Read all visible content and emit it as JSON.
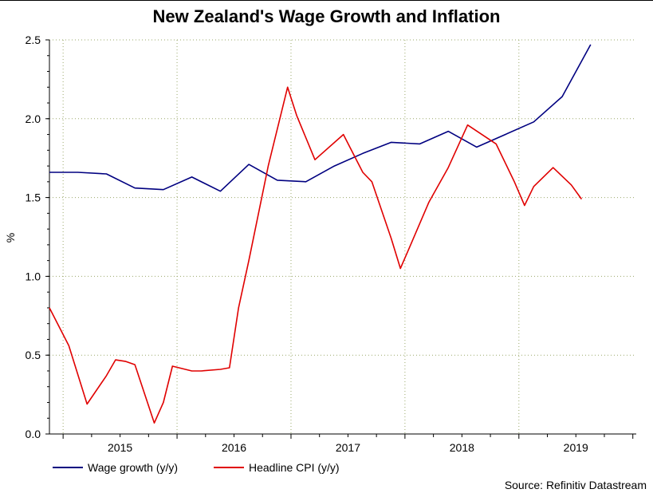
{
  "chart_data": {
    "type": "line",
    "title": "New Zealand's Wage Growth and Inflation",
    "ylabel": "%",
    "xlabel": "",
    "ylim": [
      0,
      2.5
    ],
    "xlim": [
      2014.38,
      2019.53
    ],
    "grid": true,
    "legend_position": "bottom-left",
    "y_ticks": [
      "0.0",
      "0.5",
      "1.0",
      "1.5",
      "2.0",
      "2.5"
    ],
    "x_ticks": [
      {
        "label": "2015",
        "value": 2015.0
      },
      {
        "label": "2016",
        "value": 2016.0
      },
      {
        "label": "2017",
        "value": 2017.0
      },
      {
        "label": "2018",
        "value": 2018.0
      },
      {
        "label": "2019",
        "value": 2019.0
      }
    ],
    "series": [
      {
        "name": "Wage growth (y/y)",
        "color": "#000080",
        "points": [
          [
            2014.38,
            1.66
          ],
          [
            2014.63,
            1.66
          ],
          [
            2014.88,
            1.65
          ],
          [
            2015.13,
            1.56
          ],
          [
            2015.38,
            1.55
          ],
          [
            2015.63,
            1.63
          ],
          [
            2015.88,
            1.54
          ],
          [
            2016.13,
            1.71
          ],
          [
            2016.38,
            1.61
          ],
          [
            2016.63,
            1.6
          ],
          [
            2016.88,
            1.7
          ],
          [
            2017.13,
            1.78
          ],
          [
            2017.38,
            1.85
          ],
          [
            2017.63,
            1.84
          ],
          [
            2017.88,
            1.92
          ],
          [
            2018.13,
            1.82
          ],
          [
            2018.38,
            1.9
          ],
          [
            2018.63,
            1.98
          ],
          [
            2018.88,
            2.14
          ],
          [
            2019.13,
            2.47
          ]
        ]
      },
      {
        "name": "Headline CPI (y/y)",
        "color": "#e00000",
        "points": [
          [
            2014.38,
            0.8
          ],
          [
            2014.55,
            0.56
          ],
          [
            2014.71,
            0.19
          ],
          [
            2014.88,
            0.37
          ],
          [
            2014.96,
            0.47
          ],
          [
            2015.05,
            0.46
          ],
          [
            2015.13,
            0.44
          ],
          [
            2015.3,
            0.07
          ],
          [
            2015.38,
            0.2
          ],
          [
            2015.46,
            0.43
          ],
          [
            2015.63,
            0.4
          ],
          [
            2015.71,
            0.4
          ],
          [
            2015.88,
            0.41
          ],
          [
            2015.96,
            0.42
          ],
          [
            2016.04,
            0.8
          ],
          [
            2016.13,
            1.1
          ],
          [
            2016.3,
            1.7
          ],
          [
            2016.47,
            2.2
          ],
          [
            2016.55,
            2.02
          ],
          [
            2016.71,
            1.74
          ],
          [
            2016.96,
            1.9
          ],
          [
            2017.13,
            1.66
          ],
          [
            2017.21,
            1.6
          ],
          [
            2017.38,
            1.24
          ],
          [
            2017.46,
            1.05
          ],
          [
            2017.55,
            1.2
          ],
          [
            2017.71,
            1.47
          ],
          [
            2017.88,
            1.69
          ],
          [
            2018.05,
            1.96
          ],
          [
            2018.3,
            1.84
          ],
          [
            2018.46,
            1.6
          ],
          [
            2018.55,
            1.45
          ],
          [
            2018.63,
            1.57
          ],
          [
            2018.8,
            1.69
          ],
          [
            2018.96,
            1.58
          ],
          [
            2019.05,
            1.49
          ]
        ]
      }
    ]
  },
  "source": "Source: Refinitiv Datastream"
}
